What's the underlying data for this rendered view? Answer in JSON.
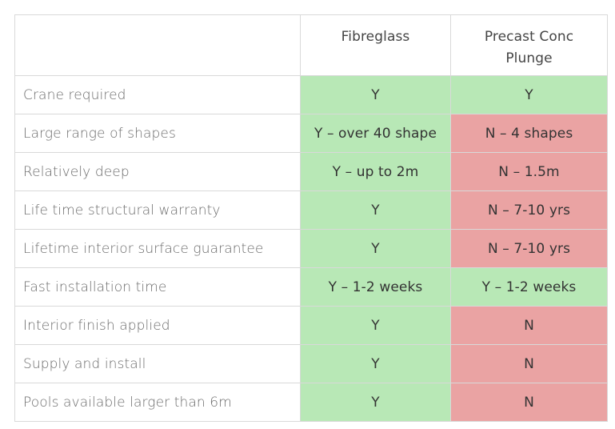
{
  "colors": {
    "yes": "#b8e8b6",
    "no": "#eaa3a3",
    "border": "#d9d9d9"
  },
  "header": {
    "corner": "",
    "columns": [
      "Fibreglass",
      "Precast Conc\nPlunge"
    ]
  },
  "rows": [
    {
      "feature": "Crane required",
      "fibreglass": "Y",
      "fibreglass_status": "yes",
      "precast": "Y",
      "precast_status": "yes"
    },
    {
      "feature": "Large range of shapes",
      "fibreglass": "Y – over 40 shape",
      "fibreglass_status": "yes",
      "precast": "N – 4 shapes",
      "precast_status": "no"
    },
    {
      "feature": "Relatively deep",
      "fibreglass": "Y – up to 2m",
      "fibreglass_status": "yes",
      "precast": "N – 1.5m",
      "precast_status": "no"
    },
    {
      "feature": "Life time structural warranty",
      "fibreglass": "Y",
      "fibreglass_status": "yes",
      "precast": "N – 7-10 yrs",
      "precast_status": "no"
    },
    {
      "feature": "Lifetime interior surface guarantee",
      "fibreglass": "Y",
      "fibreglass_status": "yes",
      "precast": "N – 7-10 yrs",
      "precast_status": "no"
    },
    {
      "feature": "Fast installation time",
      "fibreglass": "Y – 1-2 weeks",
      "fibreglass_status": "yes",
      "precast": "Y – 1-2 weeks",
      "precast_status": "yes"
    },
    {
      "feature": "Interior finish applied",
      "fibreglass": "Y",
      "fibreglass_status": "yes",
      "precast": "N",
      "precast_status": "no"
    },
    {
      "feature": "Supply and install",
      "fibreglass": "Y",
      "fibreglass_status": "yes",
      "precast": "N",
      "precast_status": "no"
    },
    {
      "feature": "Pools available larger than 6m",
      "fibreglass": "Y",
      "fibreglass_status": "yes",
      "precast": "N",
      "precast_status": "no"
    }
  ]
}
